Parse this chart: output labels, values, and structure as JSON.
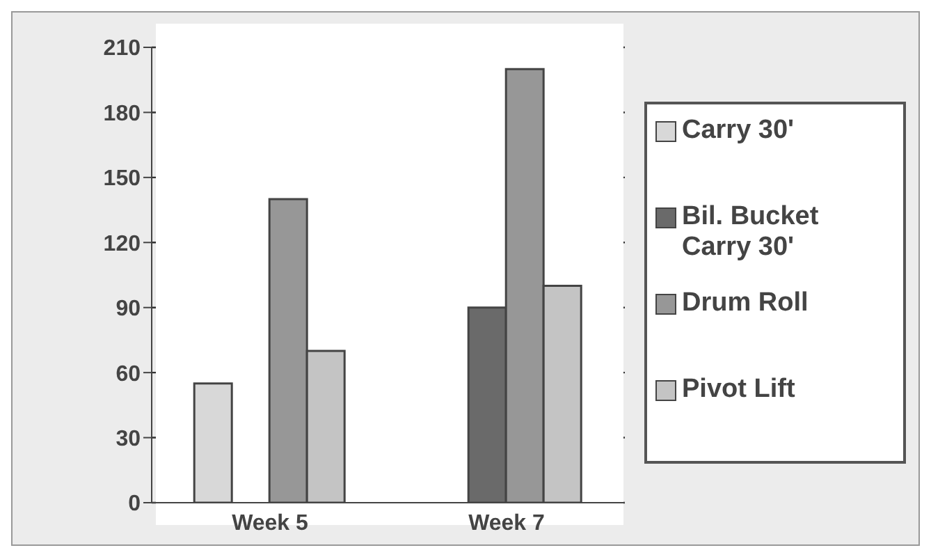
{
  "chart_data": {
    "type": "bar",
    "categories": [
      "Week 5",
      "Week 7"
    ],
    "series": [
      {
        "name": "Carry 30'",
        "color": "#d8d8d8",
        "values": [
          55,
          null
        ]
      },
      {
        "name": "Bil. Bucket Carry 30'",
        "color": "#6a6a6a",
        "values": [
          null,
          90
        ]
      },
      {
        "name": "Drum Roll",
        "color": "#979797",
        "values": [
          140,
          200
        ]
      },
      {
        "name": "Pivot Lift",
        "color": "#c4c4c4",
        "values": [
          70,
          100
        ]
      }
    ],
    "ylim": [
      0,
      210
    ],
    "yticks": [
      0,
      30,
      60,
      90,
      120,
      150,
      180,
      210
    ],
    "grid": "y",
    "legend": "right"
  }
}
